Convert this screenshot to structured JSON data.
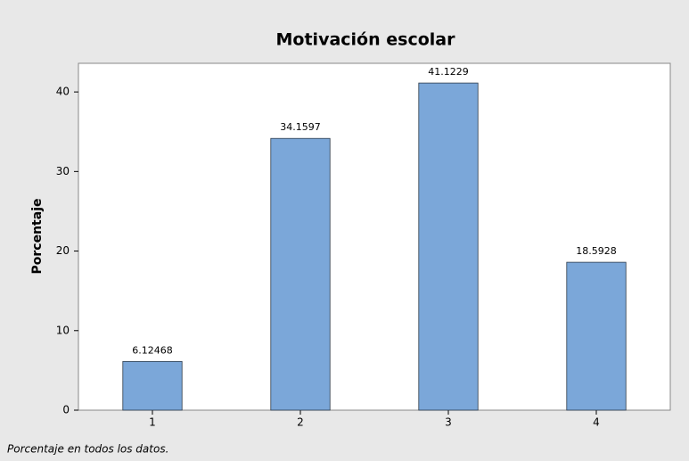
{
  "chart_data": {
    "type": "bar",
    "title": "Motivación escolar",
    "ylabel": "Porcentaje",
    "footnote": "Porcentaje en todos los datos.",
    "categories": [
      "1",
      "2",
      "3",
      "4"
    ],
    "values": [
      6.12468,
      34.1597,
      41.1229,
      18.5928
    ],
    "color": "#7ba7d9",
    "ylim": [
      0,
      43.6
    ],
    "yticks": [
      0,
      10,
      20,
      30,
      40
    ],
    "grid": false
  }
}
